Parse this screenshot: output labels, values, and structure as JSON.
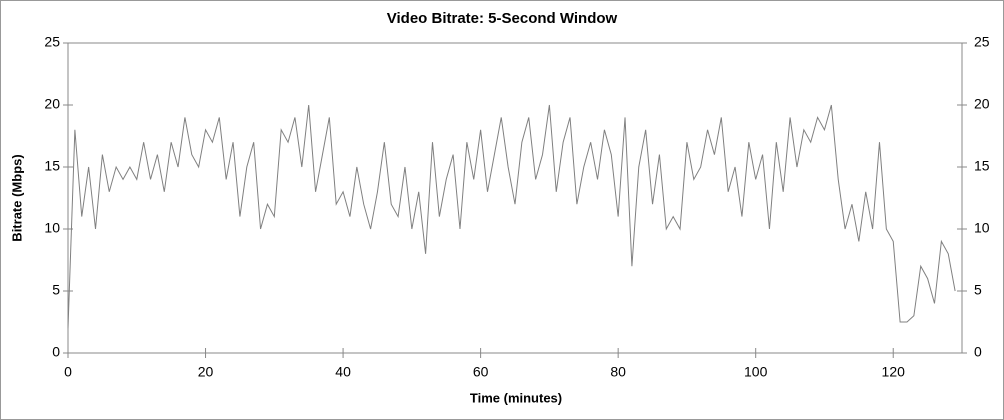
{
  "chart_data": {
    "type": "line",
    "title": "Video Bitrate: 5-Second Window",
    "x_label": "Time (minutes)",
    "y_label": "Bitrate (Mbps)",
    "x": [
      0,
      1,
      2,
      3,
      4,
      5,
      6,
      7,
      8,
      9,
      10,
      11,
      12,
      13,
      14,
      15,
      16,
      17,
      18,
      19,
      20,
      21,
      22,
      23,
      24,
      25,
      26,
      27,
      28,
      29,
      30,
      31,
      32,
      33,
      34,
      35,
      36,
      37,
      38,
      39,
      40,
      41,
      42,
      43,
      44,
      45,
      46,
      47,
      48,
      49,
      50,
      51,
      52,
      53,
      54,
      55,
      56,
      57,
      58,
      59,
      60,
      61,
      62,
      63,
      64,
      65,
      66,
      67,
      68,
      69,
      70,
      71,
      72,
      73,
      74,
      75,
      76,
      77,
      78,
      79,
      80,
      81,
      82,
      83,
      84,
      85,
      86,
      87,
      88,
      89,
      90,
      91,
      92,
      93,
      94,
      95,
      96,
      97,
      98,
      99,
      100,
      101,
      102,
      103,
      104,
      105,
      106,
      107,
      108,
      109,
      110,
      111,
      112,
      113,
      114,
      115,
      116,
      117,
      118,
      119,
      120,
      121,
      122,
      123,
      124,
      125,
      126,
      127,
      128,
      129
    ],
    "series": [
      {
        "color": "#808080",
        "values": [
          2,
          18,
          11,
          15,
          10,
          16,
          13,
          15,
          14,
          15,
          14,
          17,
          14,
          16,
          13,
          17,
          15,
          19,
          16,
          15,
          18,
          17,
          19,
          14,
          17,
          11,
          15,
          17,
          10,
          12,
          11,
          18,
          17,
          19,
          15,
          20,
          13,
          16,
          19,
          12,
          13,
          11,
          15,
          12,
          10,
          13,
          17,
          12,
          11,
          15,
          10,
          13,
          8,
          17,
          11,
          14,
          16,
          10,
          17,
          14,
          18,
          13,
          16,
          19,
          15,
          12,
          17,
          19,
          14,
          16,
          20,
          13,
          17,
          19,
          12,
          15,
          17,
          14,
          18,
          16,
          11,
          19,
          7,
          15,
          18,
          12,
          16,
          10,
          11,
          10,
          17,
          14,
          15,
          18,
          16,
          19,
          13,
          15,
          11,
          17,
          14,
          16,
          10,
          17,
          13,
          19,
          15,
          18,
          17,
          19,
          18,
          20,
          14,
          10,
          12,
          9,
          13,
          10,
          17,
          10,
          9,
          2.5,
          2.5,
          3,
          7,
          6,
          4,
          9,
          8,
          5
        ]
      }
    ],
    "xlim": [
      0,
      130
    ],
    "xticks": [
      0,
      20,
      40,
      60,
      80,
      100,
      120
    ],
    "ylim": [
      0,
      25
    ],
    "yticks": [
      0,
      5,
      10,
      15,
      20,
      25
    ],
    "y2lim": [
      0,
      25
    ],
    "y2ticks": [
      0,
      5,
      10,
      15,
      20,
      25
    ]
  }
}
